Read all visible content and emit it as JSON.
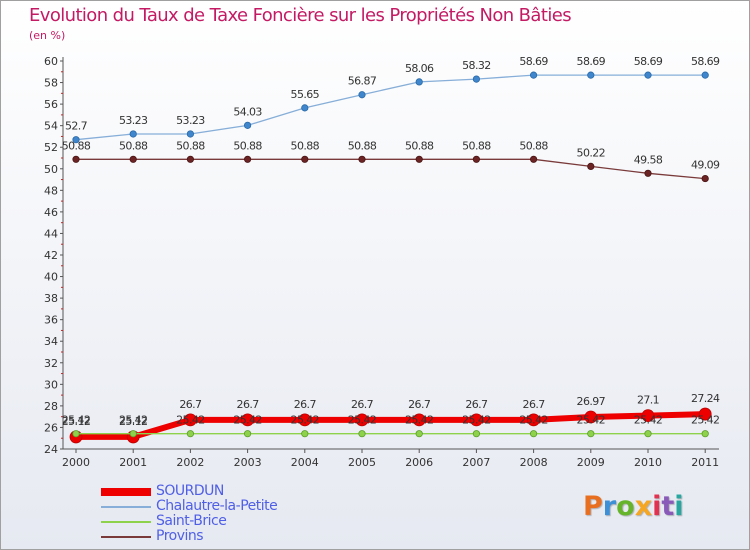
{
  "chart_data": {
    "type": "line",
    "title": "Evolution du Taux de Taxe Foncière sur les Propriétés Non Bâties",
    "ylabel": "(en %)",
    "xlabel": "",
    "x": [
      "2000",
      "2001",
      "2002",
      "2003",
      "2004",
      "2005",
      "2006",
      "2007",
      "2008",
      "2009",
      "2010",
      "2011"
    ],
    "ylim": [
      24,
      60
    ],
    "yticks": [
      24,
      26,
      28,
      30,
      32,
      34,
      36,
      38,
      40,
      42,
      44,
      46,
      48,
      50,
      52,
      54,
      56,
      58,
      60
    ],
    "grid": false,
    "legend_position": "bottom-left",
    "series": [
      {
        "name": "SOURDUN",
        "color": "#ee0000",
        "values": [
          25.12,
          25.12,
          26.7,
          26.7,
          26.7,
          26.7,
          26.7,
          26.7,
          26.7,
          26.97,
          27.1,
          27.24
        ],
        "labels": [
          "25.12",
          "25.12",
          "26.7",
          "26.7",
          "26.7",
          "26.7",
          "26.7",
          "26.7",
          "26.7",
          "26.97",
          "27.1",
          "27.24"
        ]
      },
      {
        "name": "Chalautre-la-Petite",
        "color": "#86aed8",
        "values": [
          52.7,
          53.23,
          53.23,
          54.03,
          55.65,
          56.87,
          58.06,
          58.32,
          58.69,
          58.69,
          58.69,
          58.69
        ],
        "labels": [
          "52.7",
          "53.23",
          "53.23",
          "54.03",
          "55.65",
          "56.87",
          "58.06",
          "58.32",
          "58.69",
          "58.69",
          "58.69",
          "58.69"
        ]
      },
      {
        "name": "Saint-Brice",
        "color": "#8ed14a",
        "values": [
          25.42,
          25.42,
          25.42,
          25.42,
          25.42,
          25.42,
          25.42,
          25.42,
          25.42,
          25.42,
          25.42,
          25.42
        ],
        "labels": [
          "25.42",
          "25.42",
          "25.42",
          "25.42",
          "25.42",
          "25.42",
          "25.42",
          "25.42",
          "25.42",
          "25.42",
          "25.42",
          "25.42"
        ]
      },
      {
        "name": "Provins",
        "color": "#7a3a3a",
        "values": [
          50.88,
          50.88,
          50.88,
          50.88,
          50.88,
          50.88,
          50.88,
          50.88,
          50.88,
          50.22,
          49.58,
          49.09
        ],
        "labels": [
          "50.88",
          "50.88",
          "50.88",
          "50.88",
          "50.88",
          "50.88",
          "50.88",
          "50.88",
          "50.88",
          "50.22",
          "49.58",
          "49.09"
        ]
      }
    ]
  },
  "branding": {
    "logo_letters": [
      "P",
      "r",
      "o",
      "x",
      "i",
      "t",
      "i"
    ],
    "logo_colors": [
      "#e86f1f",
      "#3d8fd6",
      "#66b42a",
      "#f5a623",
      "#e2324f",
      "#8a5ab8",
      "#27a7a0"
    ]
  }
}
